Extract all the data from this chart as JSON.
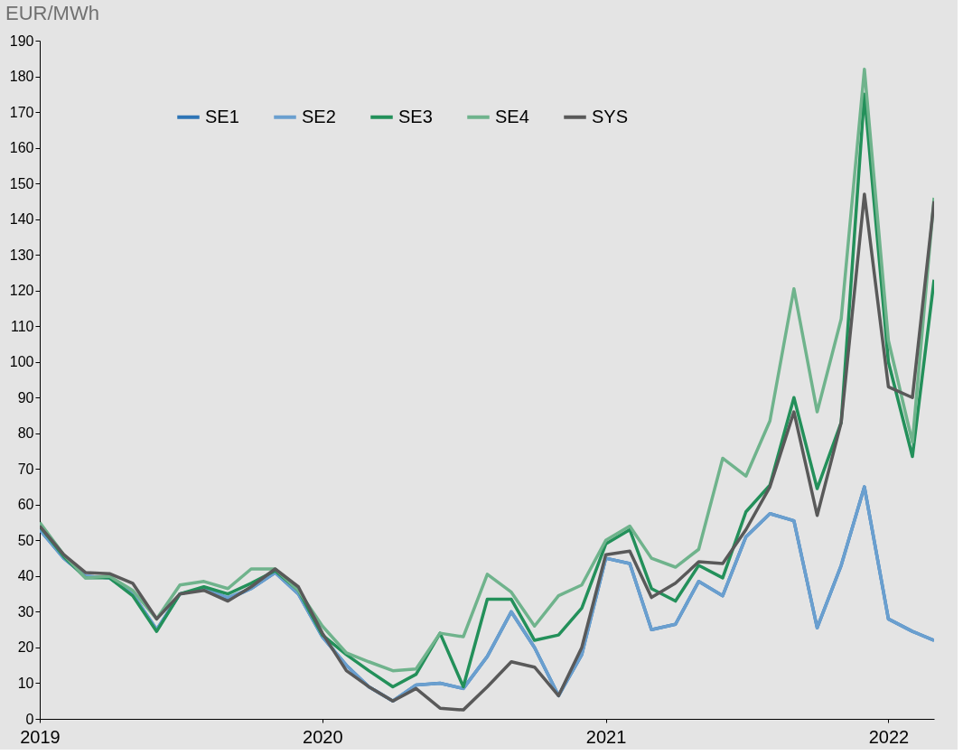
{
  "chart_data": {
    "type": "line",
    "ylabel": "EUR/MWh",
    "x": [
      "2019-01",
      "2019-02",
      "2019-03",
      "2019-04",
      "2019-05",
      "2019-06",
      "2019-07",
      "2019-08",
      "2019-09",
      "2019-10",
      "2019-11",
      "2019-12",
      "2020-01",
      "2020-02",
      "2020-03",
      "2020-04",
      "2020-05",
      "2020-06",
      "2020-07",
      "2020-08",
      "2020-09",
      "2020-10",
      "2020-11",
      "2020-12",
      "2021-01",
      "2021-02",
      "2021-03",
      "2021-04",
      "2021-05",
      "2021-06",
      "2021-07",
      "2021-08",
      "2021-09",
      "2021-10",
      "2021-11",
      "2021-12",
      "2022-01",
      "2022-02",
      "2022-03"
    ],
    "series": [
      {
        "name": "SE1",
        "color": "#2e75b6",
        "values": [
          53,
          45,
          40,
          39.5,
          35,
          25,
          35,
          36.5,
          33.5,
          36.5,
          41,
          35,
          23,
          15,
          9,
          5,
          9.5,
          10,
          8.5,
          17.5,
          30,
          20,
          6.5,
          18,
          45,
          43.5,
          25,
          26.5,
          38.5,
          34.5,
          51,
          57.5,
          55.5,
          25.5,
          43,
          65,
          28,
          24.5,
          22
        ]
      },
      {
        "name": "SE2",
        "color": "#6a9fcf",
        "values": [
          53,
          45,
          40,
          39.5,
          35,
          25,
          35,
          36.5,
          34,
          36.5,
          41,
          35,
          23,
          15,
          9,
          5,
          9.5,
          10,
          8.5,
          17.5,
          30,
          20,
          6.5,
          18,
          45,
          43.5,
          25,
          26.5,
          38.5,
          34.5,
          51,
          57.5,
          55.5,
          25.5,
          43,
          65,
          28,
          24.5,
          22
        ]
      },
      {
        "name": "SE3",
        "color": "#23905a",
        "values": [
          54,
          45.5,
          39.5,
          39.5,
          34.5,
          24.5,
          35,
          37,
          35,
          38,
          41.5,
          36,
          23.5,
          18,
          13.5,
          9,
          12.5,
          24,
          9,
          33.5,
          33.5,
          22,
          23.5,
          31,
          49,
          53,
          36.5,
          33,
          43,
          39.5,
          58,
          65.5,
          90,
          64.5,
          83,
          175,
          100,
          73.5,
          123
        ]
      },
      {
        "name": "SE4",
        "color": "#6fb38c",
        "values": [
          55,
          46,
          39.5,
          40,
          36,
          28,
          37.5,
          38.5,
          36.5,
          42,
          42,
          36,
          26,
          18.5,
          16,
          13.5,
          14,
          24,
          23,
          40.5,
          35.5,
          26,
          34.5,
          37.5,
          50,
          54,
          45,
          42.5,
          47.5,
          73,
          68,
          83.5,
          120.5,
          86,
          112,
          182,
          106,
          77.5,
          146
        ]
      },
      {
        "name": "SYS",
        "color": "#595959",
        "values": [
          54,
          46,
          41,
          40.7,
          38,
          28,
          35,
          36,
          33,
          37,
          42,
          37,
          24,
          13.5,
          9,
          5,
          8.5,
          3,
          2.5,
          9,
          16,
          14.5,
          6.5,
          20,
          46,
          47,
          34,
          38,
          44,
          43.5,
          53,
          65,
          86,
          57,
          83,
          147,
          93,
          90,
          145
        ]
      }
    ],
    "xlim": [
      "2019-01",
      "2022-03"
    ],
    "xticks": [
      "2019",
      "2020",
      "2021",
      "2022"
    ],
    "ylim": [
      0,
      190
    ],
    "yticks": [
      0,
      10,
      20,
      30,
      40,
      50,
      60,
      70,
      80,
      90,
      100,
      110,
      120,
      130,
      140,
      150,
      160,
      170,
      180,
      190
    ],
    "grid": false,
    "legend": "top left",
    "line_style": "solid",
    "marker": "none"
  }
}
